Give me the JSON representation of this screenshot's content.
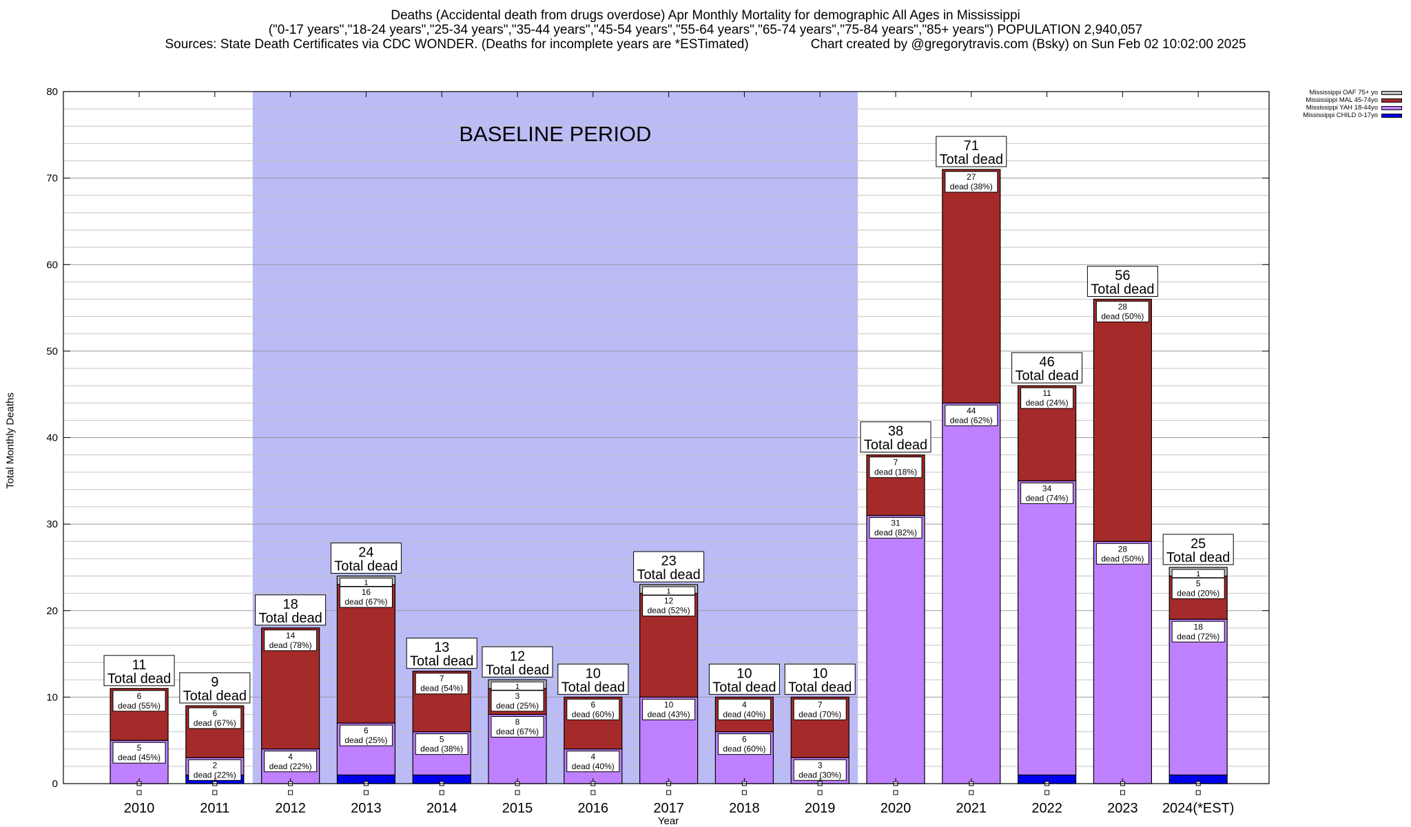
{
  "header": {
    "line1": "Deaths (Accidental death from drugs overdose) Apr Monthly Mortality for demographic All Ages in Mississippi",
    "line2": "(\"0-17 years\",\"18-24 years\",\"25-34 years\",\"35-44 years\",\"45-54 years\",\"55-64 years\",\"65-74 years\",\"75-84 years\",\"85+ years\") POPULATION 2,940,057",
    "line3_left": "Sources: State Death Certificates via CDC WONDER. (Deaths for incomplete years are *ESTimated)",
    "line3_right": "Chart created by @gregorytravis.com (Bsky) on Sun Feb 02 10:02:00 2025"
  },
  "chart_data": {
    "type": "bar",
    "stacked": true,
    "xlabel": "Year",
    "ylabel": "Total Monthly Deaths",
    "ylim": [
      0,
      80
    ],
    "yticks": [
      0,
      10,
      20,
      30,
      40,
      50,
      60,
      70,
      80
    ],
    "grid": "horizontal",
    "legend_position": "top-right (outside plot)",
    "categories": [
      "2010",
      "2011",
      "2012",
      "2013",
      "2014",
      "2015",
      "2016",
      "2017",
      "2018",
      "2019",
      "2020",
      "2021",
      "2022",
      "2023",
      "2024(*EST)"
    ],
    "baseline_region": {
      "label": "BASELINE PERIOD",
      "from": "2012",
      "to": "2019",
      "color": "#bbbbf6"
    },
    "total_suffix": "Total dead",
    "totals": [
      11,
      9,
      18,
      24,
      13,
      12,
      10,
      23,
      10,
      10,
      38,
      71,
      46,
      56,
      25
    ],
    "series": [
      {
        "name": "Mississippi CHILD 0-17yo",
        "color": "#0000ee",
        "values": [
          0,
          1,
          0,
          1,
          1,
          0,
          0,
          0,
          0,
          0,
          0,
          0,
          1,
          0,
          1
        ],
        "labels": [
          "",
          "",
          "",
          "",
          "",
          "",
          "",
          "",
          "",
          "",
          "",
          "",
          "",
          "",
          ""
        ]
      },
      {
        "name": "Mississippi YAH 18-44yo",
        "color": "#bf80ff",
        "values": [
          5,
          2,
          4,
          6,
          5,
          8,
          4,
          10,
          6,
          3,
          31,
          44,
          34,
          28,
          18
        ],
        "labels": [
          "dead (45%)",
          "dead (22%)",
          "dead (22%)",
          "dead (25%)",
          "dead (38%)",
          "dead (67%)",
          "dead (40%)",
          "dead (43%)",
          "dead (60%)",
          "dead (30%)",
          "dead (82%)",
          "dead (62%)",
          "dead (74%)",
          "dead (50%)",
          "dead (72%)"
        ]
      },
      {
        "name": "Mississippi MAL 45-74yo",
        "color": "#a52a2a",
        "values": [
          6,
          6,
          14,
          16,
          7,
          3,
          6,
          12,
          4,
          7,
          7,
          27,
          11,
          28,
          5
        ],
        "labels": [
          "dead (55%)",
          "dead (67%)",
          "dead (78%)",
          "dead (67%)",
          "dead (54%)",
          "dead (25%)",
          "dead (60%)",
          "dead (52%)",
          "dead (40%)",
          "dead (70%)",
          "dead (18%)",
          "dead (38%)",
          "dead (24%)",
          "dead (50%)",
          "dead (20%)"
        ]
      },
      {
        "name": "Mississippi OAF 75+ yo",
        "color": "#c0c0c0",
        "values": [
          0,
          0,
          0,
          1,
          0,
          1,
          0,
          1,
          0,
          0,
          0,
          0,
          0,
          0,
          1
        ],
        "labels": [
          "",
          "",
          "",
          "",
          "",
          "",
          "",
          "",
          "",
          "",
          "",
          "",
          "",
          "",
          ""
        ]
      }
    ]
  }
}
